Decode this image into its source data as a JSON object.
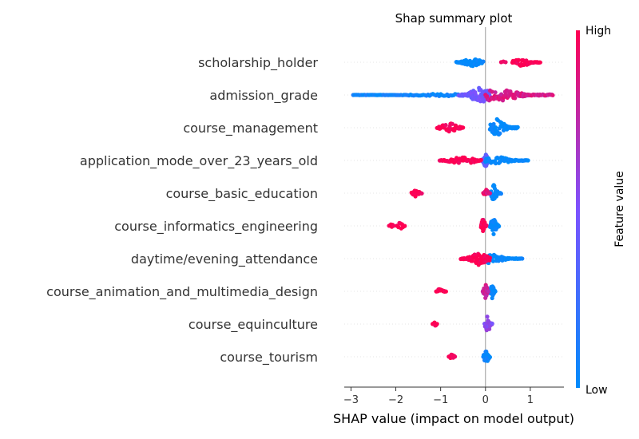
{
  "chart_data": {
    "type": "scatter",
    "subtype": "shap-beeswarm",
    "title": "Shap summary plot",
    "xlabel": "SHAP value (impact on model output)",
    "xlim": [
      -3.15,
      1.75
    ],
    "xticks": [
      -3,
      -2,
      -1,
      0,
      1
    ],
    "xtick_labels": [
      "−3",
      "−2",
      "−1",
      "0",
      "1"
    ],
    "zero_line": true,
    "grid": false,
    "colorbar": {
      "label": "Feature value",
      "high_label": "High",
      "low_label": "Low",
      "low_color": "#008bfb",
      "high_color": "#ff0052",
      "mid_color": "#7c52ff"
    },
    "features": [
      {
        "name": "scholarship_holder",
        "clusters": [
          {
            "min": -0.65,
            "max": -0.05,
            "center": -0.3,
            "spread": 0.5,
            "count": 60,
            "value": 0.0
          },
          {
            "min": 0.6,
            "max": 1.22,
            "center": 0.82,
            "spread": 0.45,
            "count": 45,
            "value": 1.0
          },
          {
            "min": 0.35,
            "max": 0.45,
            "center": 0.4,
            "spread": 0.1,
            "count": 3,
            "value": 1.0
          }
        ]
      },
      {
        "name": "admission_grade",
        "clusters": [
          {
            "min": -2.95,
            "max": -0.5,
            "center": -0.9,
            "spread": 0.15,
            "count": 70,
            "value": 0.05
          },
          {
            "min": -0.6,
            "max": 0.1,
            "center": -0.1,
            "spread": 1.0,
            "count": 90,
            "value": 0.45
          },
          {
            "min": 0.0,
            "max": 1.5,
            "center": 0.25,
            "spread": 0.8,
            "count": 90,
            "value": 0.85
          }
        ]
      },
      {
        "name": "course_management",
        "clusters": [
          {
            "min": 0.1,
            "max": 0.72,
            "center": 0.25,
            "spread": 1.0,
            "count": 60,
            "value": 0.0
          },
          {
            "min": -1.08,
            "max": -0.5,
            "center": -0.8,
            "spread": 0.55,
            "count": 40,
            "value": 1.0
          }
        ]
      },
      {
        "name": "application_mode_over_23_years_old",
        "clusters": [
          {
            "min": -0.08,
            "max": 0.05,
            "center": 0.0,
            "spread": 1.0,
            "count": 30,
            "value": 0.4
          },
          {
            "min": 0.0,
            "max": 0.95,
            "center": 0.25,
            "spread": 0.45,
            "count": 55,
            "value": 0.0
          },
          {
            "min": -1.02,
            "max": -0.1,
            "center": -0.5,
            "spread": 0.45,
            "count": 55,
            "value": 1.0
          }
        ]
      },
      {
        "name": "course_basic_education",
        "clusters": [
          {
            "min": 0.12,
            "max": 0.35,
            "center": 0.18,
            "spread": 1.0,
            "count": 40,
            "value": 0.0
          },
          {
            "min": -0.05,
            "max": 0.1,
            "center": 0.02,
            "spread": 0.4,
            "count": 12,
            "value": 0.9
          },
          {
            "min": -1.65,
            "max": -1.42,
            "center": -1.55,
            "spread": 0.4,
            "count": 14,
            "value": 1.0
          }
        ]
      },
      {
        "name": "course_informatics_engineering",
        "clusters": [
          {
            "min": 0.1,
            "max": 0.3,
            "center": 0.18,
            "spread": 1.0,
            "count": 35,
            "value": 0.0
          },
          {
            "min": -0.1,
            "max": 0.02,
            "center": -0.05,
            "spread": 1.0,
            "count": 25,
            "value": 1.0
          },
          {
            "min": -2.15,
            "max": -2.05,
            "center": -2.1,
            "spread": 0.35,
            "count": 6,
            "value": 1.0
          },
          {
            "min": -1.98,
            "max": -1.8,
            "center": -1.9,
            "spread": 0.45,
            "count": 10,
            "value": 1.0
          }
        ]
      },
      {
        "name": "daytime/evening_attendance",
        "clusters": [
          {
            "min": -0.1,
            "max": 0.82,
            "center": 0.1,
            "spread": 0.55,
            "count": 55,
            "value": 0.0
          },
          {
            "min": -0.55,
            "max": 0.1,
            "center": -0.15,
            "spread": 0.75,
            "count": 60,
            "value": 1.0
          }
        ]
      },
      {
        "name": "course_animation_and_multimedia_design",
        "clusters": [
          {
            "min": 0.1,
            "max": 0.22,
            "center": 0.15,
            "spread": 0.8,
            "count": 18,
            "value": 0.0
          },
          {
            "min": -0.06,
            "max": 0.06,
            "center": 0.0,
            "spread": 1.0,
            "count": 28,
            "value": 0.8
          },
          {
            "min": -1.1,
            "max": -0.88,
            "center": -1.0,
            "spread": 0.4,
            "count": 14,
            "value": 1.0
          }
        ]
      },
      {
        "name": "course_equinculture",
        "clusters": [
          {
            "min": -0.02,
            "max": 0.15,
            "center": 0.05,
            "spread": 1.0,
            "count": 30,
            "value": 0.55
          },
          {
            "min": -1.18,
            "max": -1.08,
            "center": -1.13,
            "spread": 0.3,
            "count": 8,
            "value": 1.0
          }
        ]
      },
      {
        "name": "course_tourism",
        "clusters": [
          {
            "min": -0.05,
            "max": 0.1,
            "center": 0.02,
            "spread": 1.0,
            "count": 32,
            "value": 0.05
          },
          {
            "min": -0.82,
            "max": -0.68,
            "center": -0.75,
            "spread": 0.35,
            "count": 8,
            "value": 1.0
          }
        ]
      }
    ]
  }
}
